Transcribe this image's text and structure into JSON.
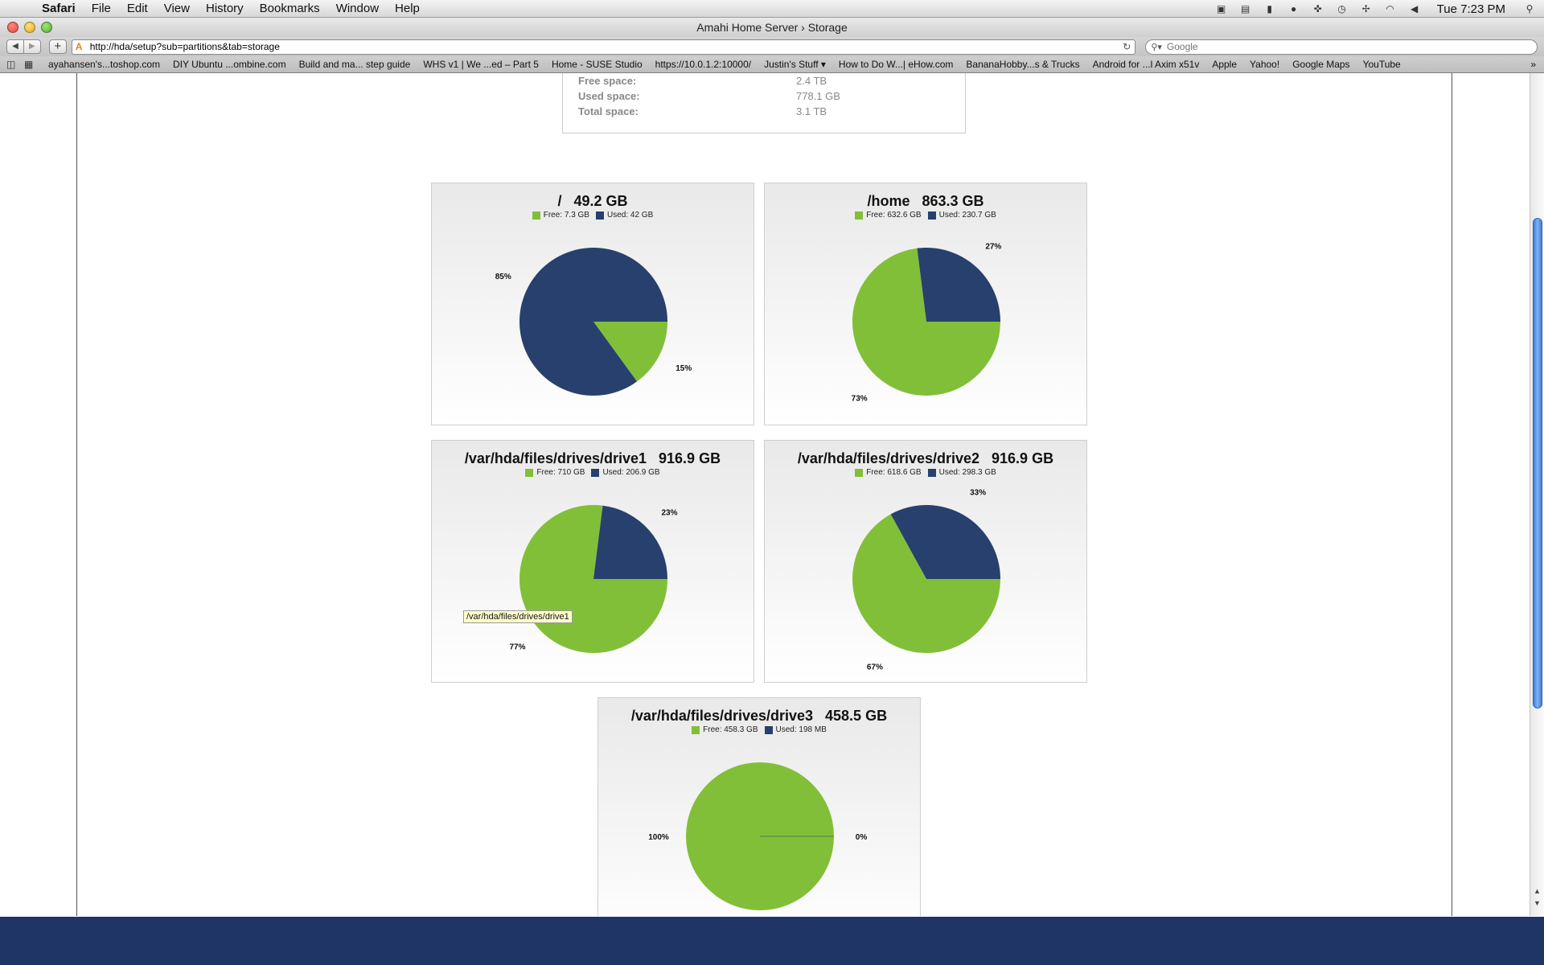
{
  "menubar": {
    "app": "Safari",
    "items": [
      "File",
      "Edit",
      "View",
      "History",
      "Bookmarks",
      "Window",
      "Help"
    ],
    "clock": "Tue 7:23 PM"
  },
  "window": {
    "title": "Amahi Home Server › Storage",
    "url": "http://hda/setup?sub=partitions&tab=storage",
    "search_placeholder": "Google"
  },
  "bookmarks": [
    "ayahansen's...toshop.com",
    "DIY Ubuntu ...ombine.com",
    "Build and ma... step guide",
    "WHS v1 | We ...ed – Part 5",
    "Home - SUSE Studio",
    "https://10.0.1.2:10000/",
    "Justin's Stuff ▾",
    "How to Do W...| eHow.com",
    "BananaHobby...s & Trucks",
    "Android for ...l Axim x51v",
    "Apple",
    "Yahoo!",
    "Google Maps",
    "YouTube"
  ],
  "summary": {
    "free_label": "Free space:",
    "free_value": "2.4 TB",
    "used_label": "Used space:",
    "used_value": "778.1 GB",
    "total_label": "Total space:",
    "total_value": "3.1 TB"
  },
  "colors": {
    "free": "#82bf38",
    "used": "#27406d"
  },
  "tooltip": "/var/hda/files/drives/drive1",
  "chart_data": [
    {
      "type": "pie",
      "title": "/   49.2 GB",
      "legend": [
        "Free: 7.3 GB",
        "Used: 42 GB"
      ],
      "values": [
        15,
        85
      ],
      "labels": [
        "15%",
        "85%"
      ]
    },
    {
      "type": "pie",
      "title": "/home   863.3 GB",
      "legend": [
        "Free: 632.6 GB",
        "Used: 230.7 GB"
      ],
      "values": [
        73,
        27
      ],
      "labels": [
        "73%",
        "27%"
      ]
    },
    {
      "type": "pie",
      "title": "/var/hda/files/drives/drive1   916.9 GB",
      "legend": [
        "Free: 710 GB",
        "Used: 206.9 GB"
      ],
      "values": [
        77,
        23
      ],
      "labels": [
        "77%",
        "23%"
      ]
    },
    {
      "type": "pie",
      "title": "/var/hda/files/drives/drive2   916.9 GB",
      "legend": [
        "Free: 618.6 GB",
        "Used: 298.3 GB"
      ],
      "values": [
        67,
        33
      ],
      "labels": [
        "67%",
        "33%"
      ]
    },
    {
      "type": "pie",
      "title": "/var/hda/files/drives/drive3   458.5 GB",
      "legend": [
        "Free: 458.3 GB",
        "Used: 198 MB"
      ],
      "values": [
        100,
        0
      ],
      "labels": [
        "100%",
        "0%"
      ]
    }
  ]
}
